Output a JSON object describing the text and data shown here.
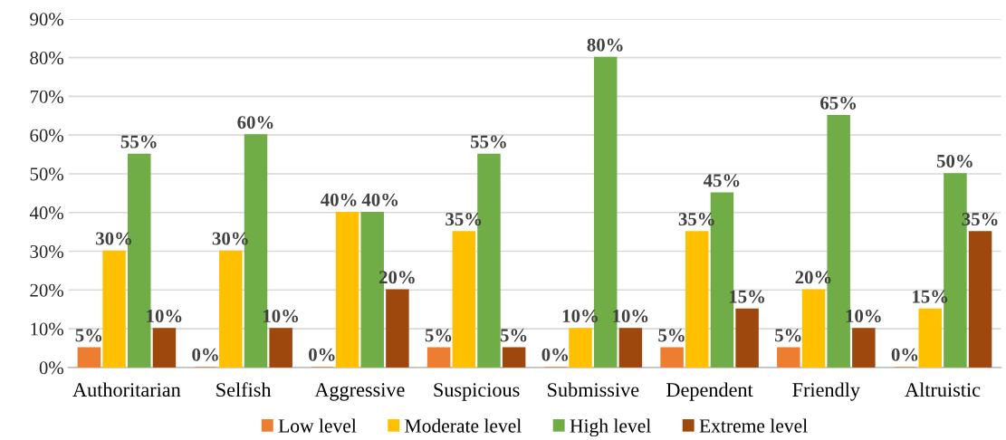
{
  "chart_data": {
    "type": "bar",
    "categories": [
      "Authoritarian",
      "Selfish",
      "Aggressive",
      "Suspicious",
      "Submissive",
      "Dependent",
      "Friendly",
      "Altruistic"
    ],
    "series": [
      {
        "name": "Low level",
        "color": "#ed7d31",
        "values": [
          5,
          0,
          0,
          5,
          0,
          5,
          5,
          0
        ],
        "value_labels": [
          "5%",
          "0%",
          "0%",
          "5%",
          "0%",
          "5%",
          "5%",
          "0%"
        ]
      },
      {
        "name": "Moderate level",
        "color": "#ffc000",
        "values": [
          30,
          30,
          40,
          35,
          10,
          35,
          20,
          15
        ],
        "value_labels": [
          "30%",
          "30%",
          "40%",
          "35%",
          "10%",
          "35%",
          "20%",
          "15%"
        ]
      },
      {
        "name": "High level",
        "color": "#70ad47",
        "values": [
          55,
          60,
          40,
          55,
          80,
          45,
          65,
          50
        ],
        "value_labels": [
          "55%",
          "60%",
          "40%",
          "55%",
          "80%",
          "45%",
          "65%",
          "50%"
        ]
      },
      {
        "name": "Extreme level",
        "color": "#9e480e",
        "values": [
          10,
          10,
          20,
          5,
          10,
          15,
          10,
          35
        ],
        "value_labels": [
          "10%",
          "10%",
          "20%",
          "5%",
          "10%",
          "15%",
          "10%",
          "35%"
        ]
      }
    ],
    "ylim": [
      0,
      90
    ],
    "yticks": [
      {
        "value": 0,
        "label": "0%"
      },
      {
        "value": 10,
        "label": "10%"
      },
      {
        "value": 20,
        "label": "20%"
      },
      {
        "value": 30,
        "label": "30%"
      },
      {
        "value": 40,
        "label": "40%"
      },
      {
        "value": 50,
        "label": "50%"
      },
      {
        "value": 60,
        "label": "60%"
      },
      {
        "value": 70,
        "label": "70%"
      },
      {
        "value": 80,
        "label": "80%"
      },
      {
        "value": 90,
        "label": "90%"
      }
    ],
    "grid": "y",
    "legend": "bottom"
  }
}
